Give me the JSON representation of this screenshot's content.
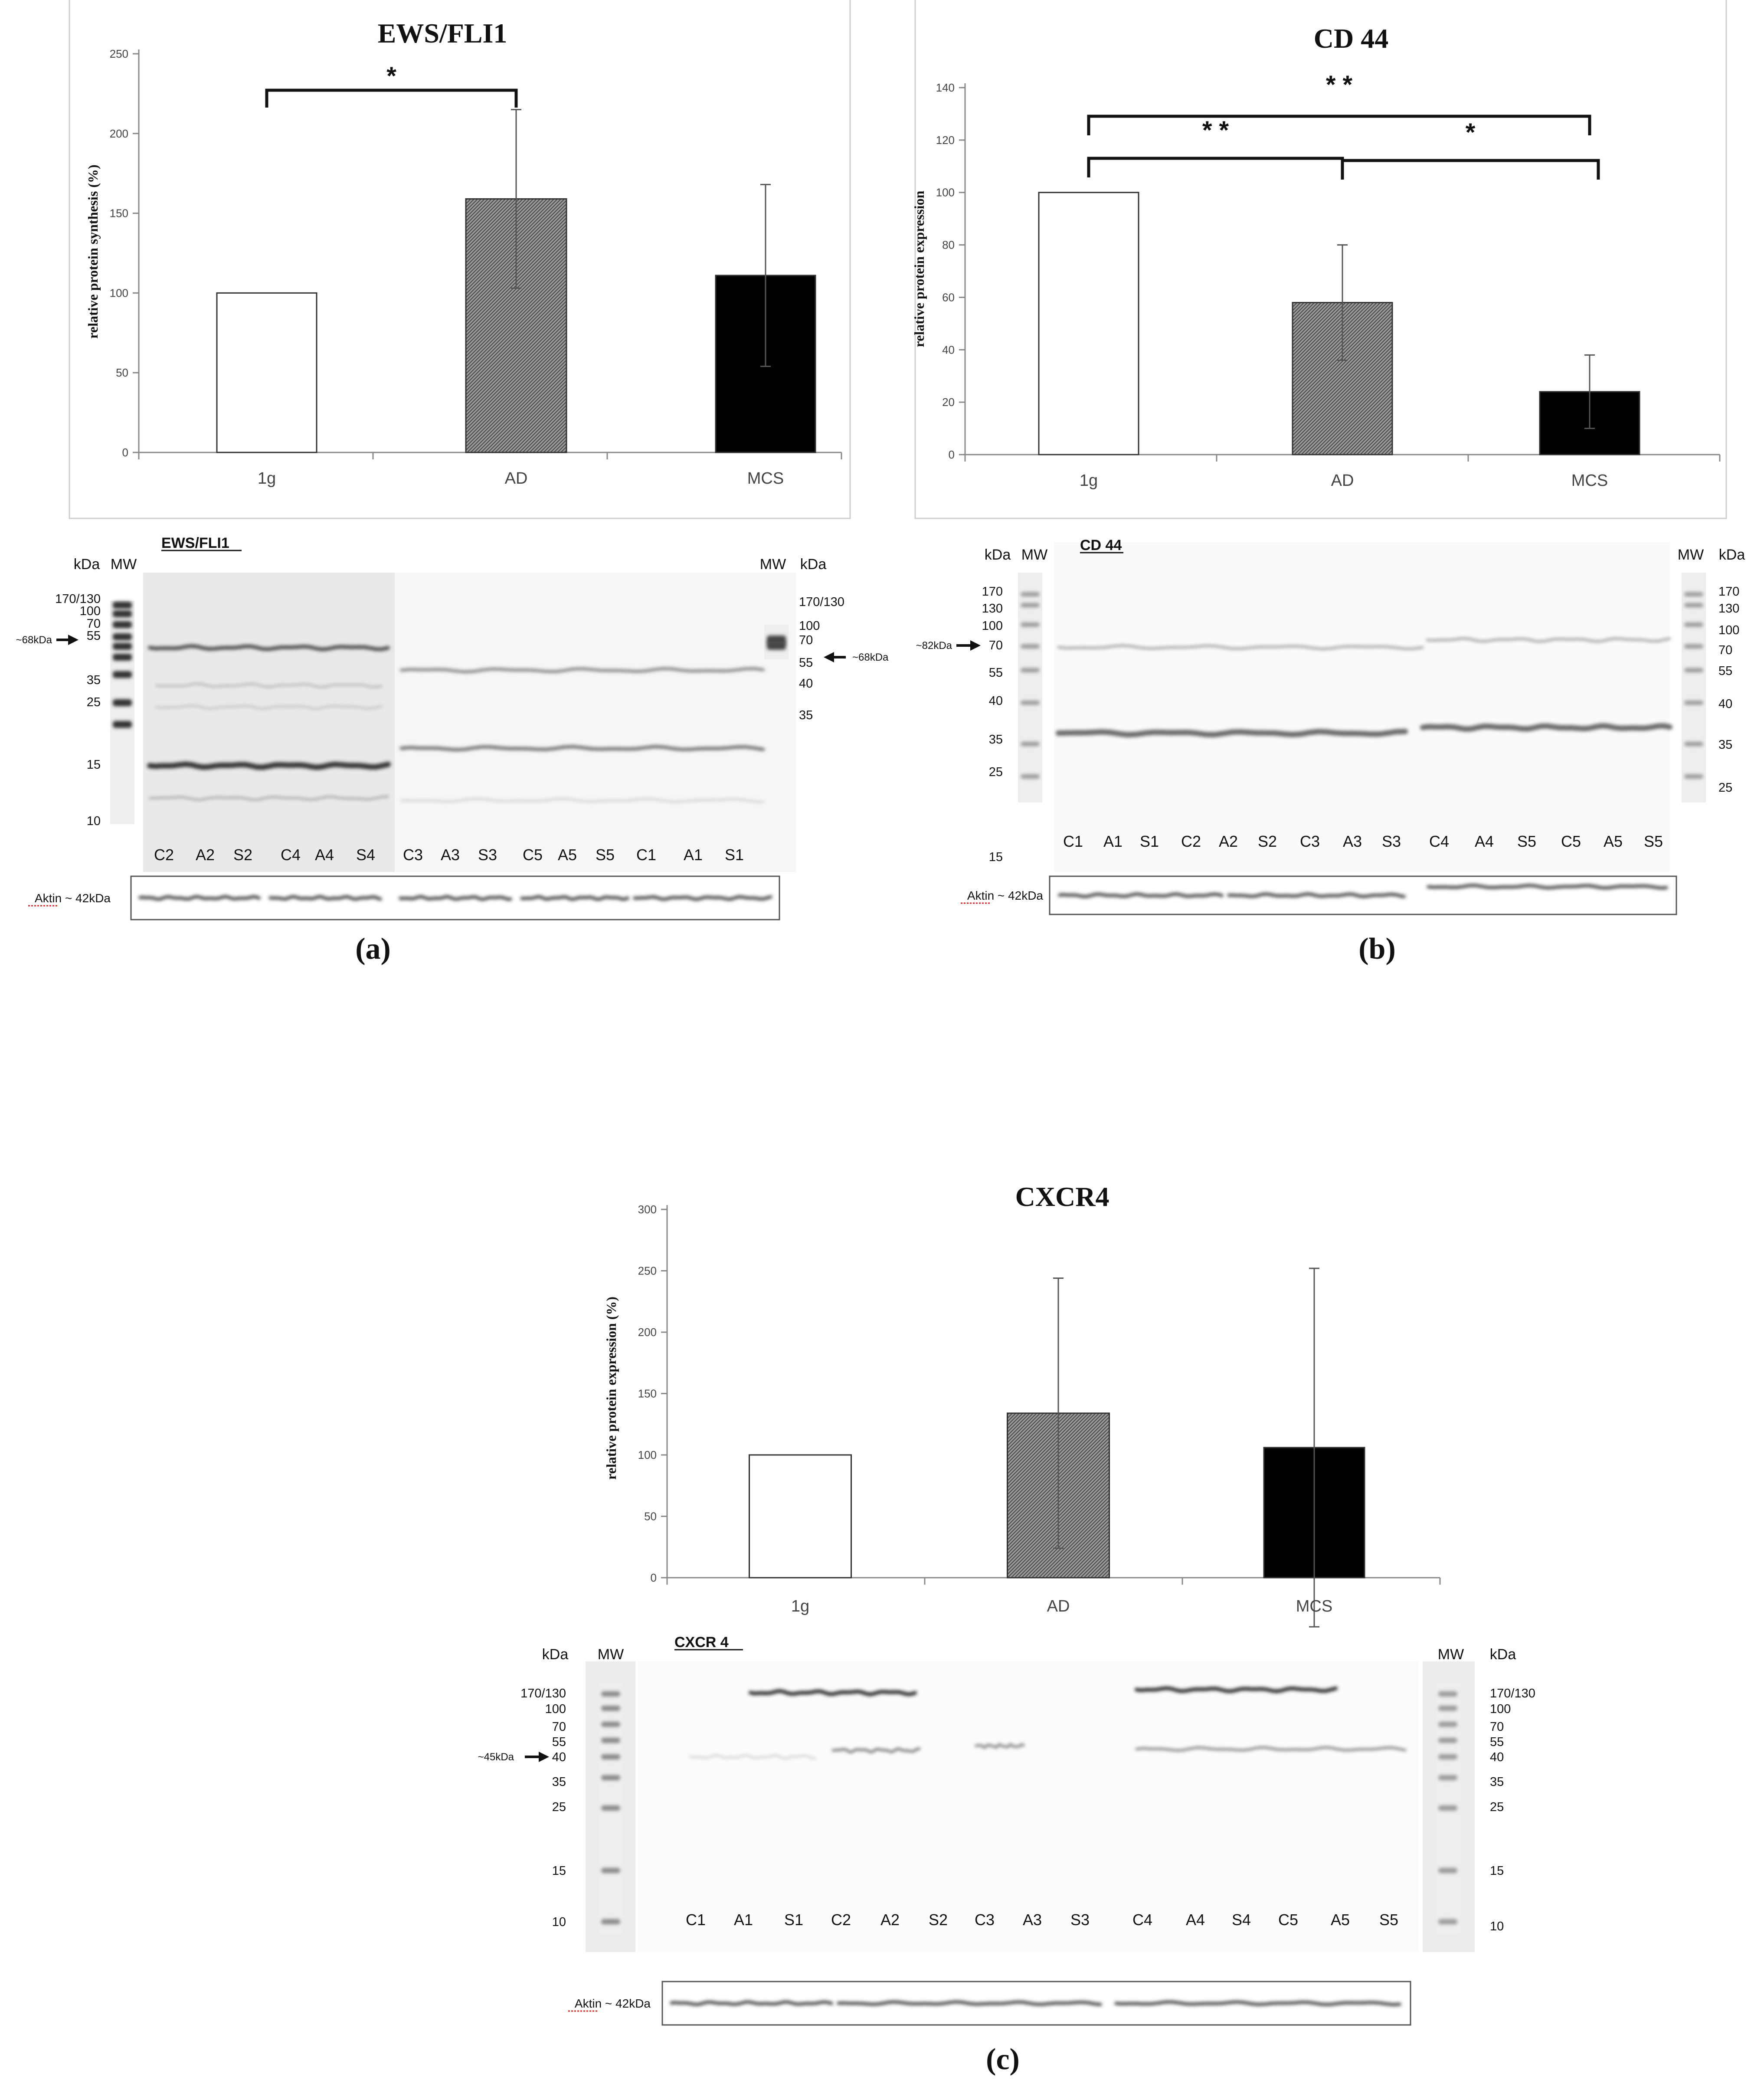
{
  "panels": [
    {
      "id": "a",
      "caption": "(a)",
      "chart": {
        "title": "EWS/FLI1",
        "ylabel": "relative protein synthesis (%)",
        "yticks": [
          0,
          50,
          100,
          150,
          200,
          250
        ],
        "categories": [
          "1g",
          "AD",
          "MCS"
        ],
        "significance": [
          {
            "label": "*"
          }
        ]
      },
      "blot": {
        "antibody": "EWS/FLI1",
        "mw_label": "MW",
        "kda_label": "kDa",
        "marker_left": [
          "170/130",
          "100",
          "70",
          "55",
          "35",
          "25",
          "15",
          "10"
        ],
        "marker_right": [
          "170/130",
          "100",
          "70",
          "55",
          "40",
          "35"
        ],
        "arrow_left": "~68kDa",
        "arrow_right": "~68kDa",
        "lanes": [
          "C2",
          "A2",
          "S2",
          "C4",
          "A4",
          "S4",
          "C3",
          "A3",
          "S3",
          "C5",
          "A5",
          "S5",
          "C1",
          "A1",
          "S1"
        ],
        "loading_label": "Aktin ~ 42kDa"
      }
    },
    {
      "id": "b",
      "caption": "(b)",
      "chart": {
        "title": "CD 44",
        "ylabel": "relative protein expression",
        "yticks": [
          0,
          20,
          40,
          60,
          80,
          100,
          120,
          140
        ],
        "categories": [
          "1g",
          "AD",
          "MCS"
        ],
        "significance": [
          {
            "label": "* *"
          },
          {
            "label": "* *"
          },
          {
            "label": "*"
          }
        ]
      },
      "blot": {
        "antibody": "CD 44",
        "mw_label": "MW",
        "kda_label": "kDa",
        "marker_left": [
          "170",
          "130",
          "100",
          "70",
          "55",
          "40",
          "35",
          "25",
          "15"
        ],
        "marker_right": [
          "170",
          "130",
          "100",
          "70",
          "55",
          "40",
          "35",
          "25"
        ],
        "arrow_left": "~82kDa",
        "lanes": [
          "C1",
          "A1",
          "S1",
          "C2",
          "A2",
          "S2",
          "C3",
          "A3",
          "S3",
          "C4",
          "A4",
          "S5",
          "C5",
          "A5",
          "S5"
        ],
        "loading_label": "Aktin ~ 42kDa"
      }
    },
    {
      "id": "c",
      "caption": "(c)",
      "chart": {
        "title": "CXCR4",
        "ylabel": "relative protein expression (%)",
        "yticks": [
          0,
          50,
          100,
          150,
          200,
          250,
          300
        ],
        "categories": [
          "1g",
          "AD",
          "MCS"
        ],
        "significance": []
      },
      "blot": {
        "antibody": "CXCR 4",
        "mw_label": "MW",
        "kda_label": "kDa",
        "marker_left": [
          "170/130",
          "100",
          "70",
          "55",
          "40",
          "35",
          "25",
          "15",
          "10"
        ],
        "marker_right": [
          "170/130",
          "100",
          "70",
          "55",
          "40",
          "35",
          "25",
          "15",
          "10"
        ],
        "arrow_left": "~45kDa",
        "lanes": [
          "C1",
          "A1",
          "S1",
          "C2",
          "A2",
          "S2",
          "C3",
          "A3",
          "S3",
          "C4",
          "A4",
          "S4",
          "C5",
          "A5",
          "S5"
        ],
        "loading_label": "Aktin ~ 42kDa"
      }
    }
  ],
  "chart_data": [
    {
      "type": "bar",
      "title": "EWS/FLI1",
      "xlabel": "",
      "ylabel": "relative protein synthesis (%)",
      "categories": [
        "1g",
        "AD",
        "MCS"
      ],
      "values": [
        100,
        159,
        111
      ],
      "error": [
        0,
        56,
        57
      ],
      "colors": [
        "#ffffff",
        "#8a8a8a",
        "#000000"
      ],
      "ylim": [
        0,
        250
      ],
      "grid": false,
      "legend": "none"
    },
    {
      "type": "bar",
      "title": "CD 44",
      "xlabel": "",
      "ylabel": "relative protein expression",
      "categories": [
        "1g",
        "AD",
        "MCS"
      ],
      "values": [
        100,
        58,
        24
      ],
      "error": [
        0,
        22,
        14
      ],
      "colors": [
        "#ffffff",
        "#8a8a8a",
        "#000000"
      ],
      "ylim": [
        0,
        140
      ],
      "grid": false,
      "legend": "none"
    },
    {
      "type": "bar",
      "title": "CXCR4",
      "xlabel": "",
      "ylabel": "relative protein expression (%)",
      "categories": [
        "1g",
        "AD",
        "MCS"
      ],
      "values": [
        100,
        134,
        106
      ],
      "error": [
        0,
        110,
        146
      ],
      "colors": [
        "#ffffff",
        "#8a8a8a",
        "#000000"
      ],
      "ylim": [
        0,
        300
      ],
      "grid": false,
      "legend": "none"
    }
  ]
}
